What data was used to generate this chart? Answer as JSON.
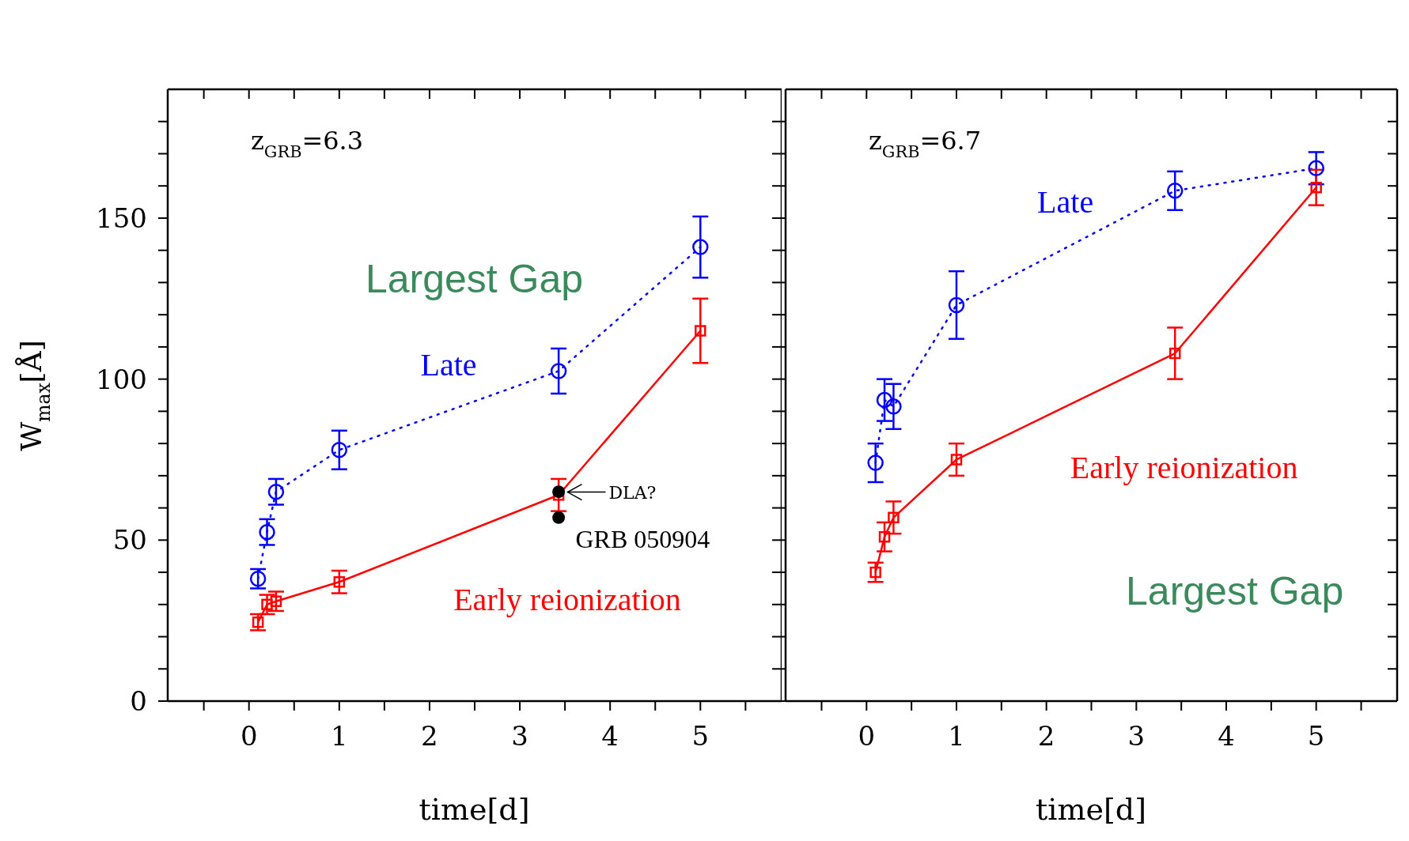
{
  "chart_data": [
    {
      "type": "line",
      "xlabel": "time[d]",
      "ylabel": "W$_{max}$[Å]",
      "annotations": [
        "z$_{GRB}$=6.3",
        "Largest Gap",
        {
          "text": "DLA?",
          "x": 3.43,
          "y": 65
        },
        {
          "text": "GRB 050904",
          "x": 3.43,
          "y": 57
        }
      ],
      "x": [
        0.1,
        0.2,
        0.3,
        1,
        3.43,
        5
      ],
      "xlim": [
        -0.9,
        5.9
      ],
      "ylim": [
        0,
        190
      ],
      "xticks": [
        {
          "value": -0.5,
          "label": null
        },
        0,
        {
          "value": 0.5,
          "label": null
        },
        1,
        {
          "value": 1.5,
          "label": null
        },
        2,
        {
          "value": 2.5,
          "label": null
        },
        3,
        {
          "value": 3.5,
          "label": null
        },
        4,
        {
          "value": 4.5,
          "label": null
        },
        5,
        {
          "value": 5.5,
          "label": null
        }
      ],
      "yticks": [
        0,
        {
          "value": 10,
          "label": null
        },
        {
          "value": 20,
          "label": null
        },
        {
          "value": 30,
          "label": null
        },
        {
          "value": 40,
          "label": null
        },
        50,
        {
          "value": 60,
          "label": null
        },
        {
          "value": 70,
          "label": null
        },
        {
          "value": 80,
          "label": null
        },
        {
          "value": 90,
          "label": null
        },
        100,
        {
          "value": 110,
          "label": null
        },
        {
          "value": 120,
          "label": null
        },
        {
          "value": 130,
          "label": null
        },
        {
          "value": 140,
          "label": null
        },
        150,
        {
          "value": 160,
          "label": null
        },
        {
          "value": 170,
          "label": null
        },
        {
          "value": 180,
          "label": null
        }
      ],
      "grid": false,
      "legend": false,
      "series": [
        {
          "name": "Late",
          "color": "#0000ff",
          "marker": "circle",
          "line_style": "dotted",
          "values": [
            38,
            52.5,
            65,
            78,
            102.5,
            141
          ],
          "errors": [
            3,
            4,
            4,
            6,
            7,
            9.5
          ]
        },
        {
          "name": "Early reionization",
          "color": "#ff0000",
          "marker": "square",
          "line_style": "solid",
          "values": [
            24.5,
            30,
            31,
            37,
            64,
            115
          ],
          "errors": [
            2.5,
            3,
            3,
            3.5,
            5,
            10
          ]
        },
        {
          "type": "scatter",
          "color": "#000000",
          "marker": "circle",
          "x": [
            3.43,
            3.43
          ],
          "values": [
            65,
            57
          ]
        }
      ]
    },
    {
      "type": "line",
      "xlabel": "time[d]",
      "annotations": [
        "z$_{GRB}$=6.7",
        "Largest Gap"
      ],
      "x": [
        0.1,
        0.2,
        0.3,
        1,
        3.43,
        5
      ],
      "xlim": [
        -0.9,
        5.9
      ],
      "ylim": [
        0,
        190
      ],
      "tick_labels": "x",
      "xticks": [
        {
          "value": -0.5,
          "label": null
        },
        0,
        {
          "value": 0.5,
          "label": null
        },
        1,
        {
          "value": 1.5,
          "label": null
        },
        2,
        {
          "value": 2.5,
          "label": null
        },
        3,
        {
          "value": 3.5,
          "label": null
        },
        4,
        {
          "value": 4.5,
          "label": null
        },
        5,
        {
          "value": 5.5,
          "label": null
        }
      ],
      "yticks": [
        0,
        {
          "value": 10,
          "label": null
        },
        {
          "value": 20,
          "label": null
        },
        {
          "value": 30,
          "label": null
        },
        {
          "value": 40,
          "label": null
        },
        50,
        {
          "value": 60,
          "label": null
        },
        {
          "value": 70,
          "label": null
        },
        {
          "value": 80,
          "label": null
        },
        {
          "value": 90,
          "label": null
        },
        100,
        {
          "value": 110,
          "label": null
        },
        {
          "value": 120,
          "label": null
        },
        {
          "value": 130,
          "label": null
        },
        {
          "value": 140,
          "label": null
        },
        150,
        {
          "value": 160,
          "label": null
        },
        {
          "value": 170,
          "label": null
        },
        {
          "value": 180,
          "label": null
        }
      ],
      "grid": false,
      "legend": false,
      "series": [
        {
          "name": "Late",
          "color": "#0000ff",
          "marker": "circle",
          "line_style": "dotted",
          "values": [
            74,
            93.5,
            91.5,
            123,
            158.5,
            165.5
          ],
          "errors": [
            6,
            6.5,
            7,
            10.5,
            6,
            5
          ]
        },
        {
          "name": "Early reionization",
          "color": "#ff0000",
          "marker": "square",
          "line_style": "solid",
          "values": [
            40,
            51,
            57,
            75,
            108,
            159.5
          ],
          "errors": [
            3,
            4.5,
            5,
            5,
            8,
            5.5
          ]
        }
      ]
    }
  ]
}
